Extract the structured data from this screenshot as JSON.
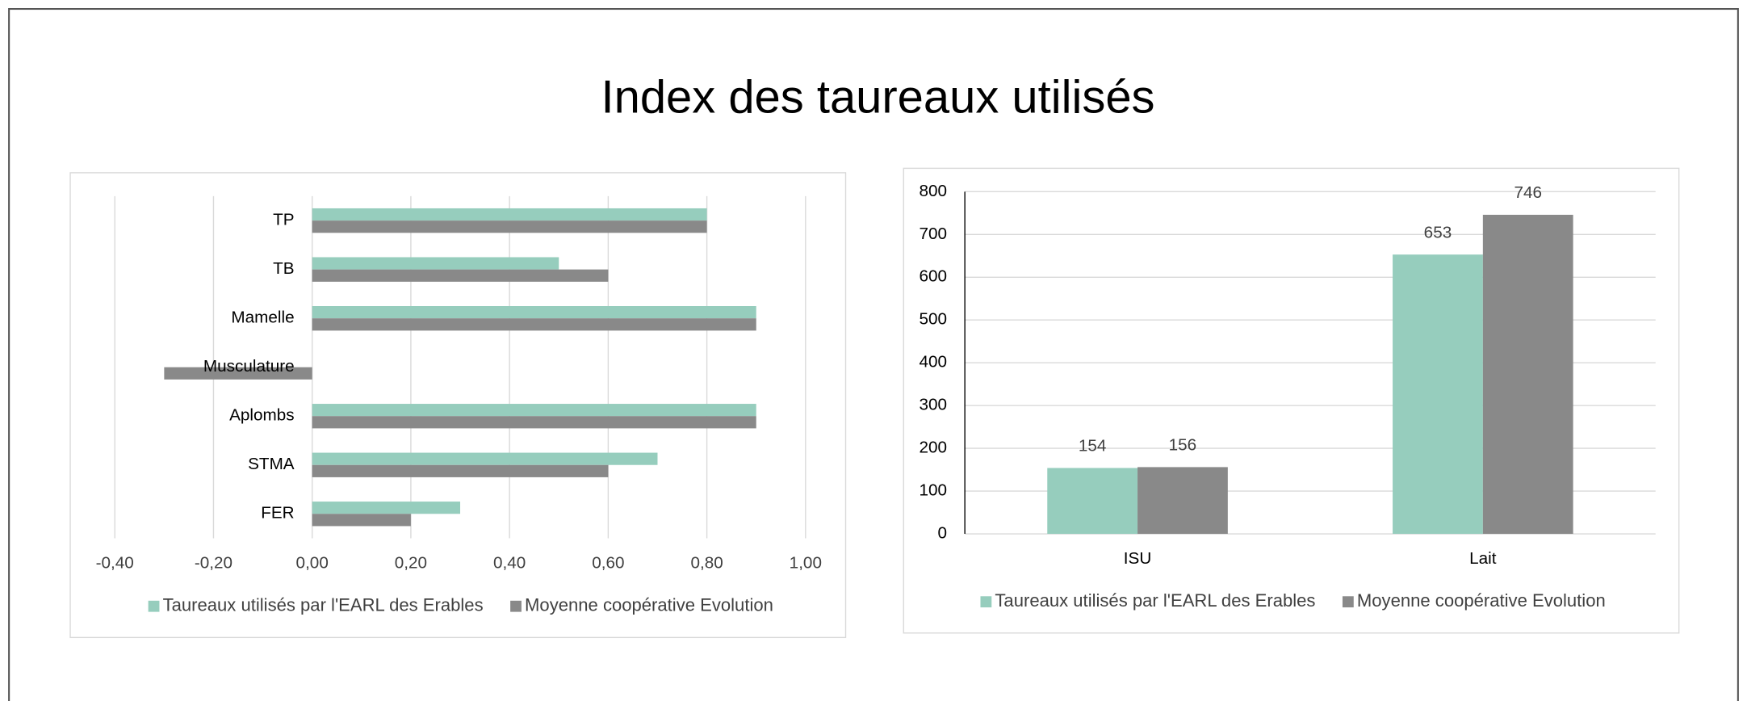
{
  "title": "Index des taureaux utilisés",
  "chart_data": [
    {
      "type": "hbar",
      "categories": [
        "TP",
        "TB",
        "Mamelle",
        "Musculature",
        "Aplombs",
        "STMA",
        "FER"
      ],
      "series": [
        {
          "name": "Taureaux utilisés par l'EARL des Erables",
          "color": "#96cdbd",
          "values": [
            0.8,
            0.5,
            0.9,
            0,
            0.9,
            0.7,
            0.3
          ]
        },
        {
          "name": "Moyenne coopérative Evolution",
          "color": "#898989",
          "values": [
            0.8,
            0.6,
            0.9,
            -0.3,
            0.9,
            0.6,
            0.2
          ]
        }
      ],
      "xlim": [
        -0.4,
        1.0
      ],
      "xticks": [
        {
          "value": -0.4,
          "label": "-0,40"
        },
        {
          "value": -0.2,
          "label": "-0,20"
        },
        {
          "value": 0,
          "label": "0,00"
        },
        {
          "value": 0.2,
          "label": "0,20"
        },
        {
          "value": 0.4,
          "label": "0,40"
        },
        {
          "value": 0.6,
          "label": "0,60"
        },
        {
          "value": 0.8,
          "label": "0,80"
        },
        {
          "value": 1.0,
          "label": "1,00"
        }
      ],
      "grid": true,
      "legend": "bottom"
    },
    {
      "type": "bar",
      "categories": [
        "ISU",
        "Lait"
      ],
      "series": [
        {
          "name": "Taureaux utilisés par l'EARL des Erables",
          "color": "#96cdbd",
          "values": [
            154,
            653
          ]
        },
        {
          "name": "Moyenne coopérative Evolution",
          "color": "#898989",
          "values": [
            156,
            746
          ]
        }
      ],
      "ylim": [
        0,
        800
      ],
      "yticks": [
        0,
        100,
        200,
        300,
        400,
        500,
        600,
        700,
        800
      ],
      "grid": true,
      "legend": "bottom",
      "data_labels": true
    }
  ]
}
